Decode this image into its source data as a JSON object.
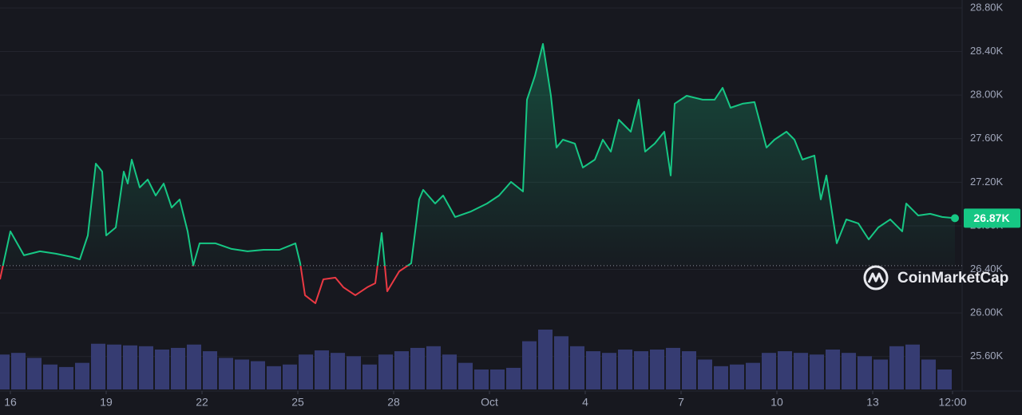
{
  "chart_data": {
    "type": "line",
    "x": [
      15.675,
      16,
      16.425,
      16.925,
      17.425,
      17.925,
      18.175,
      18.425,
      18.675,
      18.875,
      19,
      19.3,
      19.55,
      19.675,
      19.8,
      20.05,
      20.3,
      20.55,
      20.8,
      21.05,
      21.3,
      21.55,
      21.725,
      21.925,
      22.425,
      22.925,
      23.425,
      23.925,
      24.425,
      24.925,
      25.075,
      25.225,
      25.55,
      25.8,
      26.175,
      26.425,
      26.8,
      27.175,
      27.425,
      27.625,
      27.8,
      28.175,
      28.55,
      28.8,
      28.925,
      29.3,
      29.55,
      29.925,
      30.425,
      30.925,
      31.3,
      31.675,
      32.05,
      32.175,
      32.425,
      32.675,
      32.925,
      33.1,
      33.3,
      33.675,
      33.925,
      34.3,
      34.55,
      34.8,
      35.05,
      35.425,
      35.675,
      35.875,
      36.175,
      36.475,
      36.675,
      36.8,
      37.175,
      37.675,
      38.05,
      38.3,
      38.55,
      38.925,
      39.3,
      39.675,
      39.925,
      40.3,
      40.55,
      40.8,
      41.175,
      41.375,
      41.55,
      41.875,
      42.175,
      42.55,
      42.875,
      43.175,
      43.55,
      43.925,
      44.05,
      44.425,
      44.8,
      45.175,
      45.575
    ],
    "values": [
      26309,
      26749,
      26529,
      26566,
      26544,
      26514,
      26492,
      26712,
      27371,
      27298,
      26712,
      26785,
      27298,
      27188,
      27408,
      27152,
      27225,
      27078,
      27188,
      26968,
      27042,
      26749,
      26434,
      26639,
      26639,
      26588,
      26566,
      26580,
      26580,
      26639,
      26456,
      26163,
      26089,
      26309,
      26324,
      26236,
      26163,
      26236,
      26273,
      26734,
      26199,
      26382,
      26456,
      27042,
      27130,
      27005,
      27078,
      26881,
      26932,
      27005,
      27078,
      27203,
      27115,
      27958,
      28177,
      28470,
      27994,
      27518,
      27591,
      27555,
      27335,
      27408,
      27591,
      27481,
      27774,
      27664,
      27958,
      27481,
      27555,
      27664,
      27262,
      27921,
      27994,
      27958,
      27958,
      28067,
      27884,
      27921,
      27936,
      27518,
      27591,
      27664,
      27591,
      27408,
      27445,
      27042,
      27262,
      26639,
      26859,
      26822,
      26675,
      26785,
      26859,
      26749,
      27005,
      26895,
      26910,
      26881,
      26870
    ],
    "baseline": 26434,
    "up_color": "#16c784",
    "down_color": "#ea3943",
    "xlim": [
      15.675,
      45.8
    ],
    "ylim": [
      25283,
      28873
    ],
    "xticks": [
      16,
      19,
      22,
      25,
      28,
      {
        "value": 31,
        "label": "Oct"
      },
      {
        "value": 34,
        "label": "4"
      },
      {
        "value": 37,
        "label": "7"
      },
      {
        "value": 40,
        "label": "10"
      },
      {
        "value": 43,
        "label": "13"
      },
      {
        "value": 45.5,
        "label": "12:00"
      }
    ],
    "yticks": [
      {
        "value": 25600,
        "label": "25.60K"
      },
      {
        "value": 26000,
        "label": "26.00K"
      },
      {
        "value": 26400,
        "label": "26.40K"
      },
      {
        "value": 26800,
        "label": "26.80K"
      },
      {
        "value": 27200,
        "label": "27.20K"
      },
      {
        "value": 27600,
        "label": "27.60K"
      },
      {
        "value": 28000,
        "label": "28.00K"
      },
      {
        "value": 28400,
        "label": "28.40K"
      },
      {
        "value": 28800,
        "label": "28.80K"
      }
    ],
    "grid": true,
    "current_price": 26870,
    "current_price_label": "26.87K",
    "watermark": "CoinMarketCap",
    "volume": {
      "color": "#363c72",
      "x": [
        15.75,
        16.25,
        16.75,
        17.25,
        17.75,
        18.25,
        18.75,
        19.25,
        19.75,
        20.25,
        20.75,
        21.25,
        21.75,
        22.25,
        22.75,
        23.25,
        23.75,
        24.25,
        24.75,
        25.25,
        25.75,
        26.25,
        26.75,
        27.25,
        27.75,
        28.25,
        28.75,
        29.25,
        29.75,
        30.25,
        30.75,
        31.25,
        31.75,
        32.25,
        32.75,
        33.25,
        33.75,
        34.25,
        34.75,
        35.25,
        35.75,
        36.25,
        36.75,
        37.25,
        37.75,
        38.25,
        38.75,
        39.25,
        39.75,
        40.25,
        40.75,
        41.25,
        41.75,
        42.25,
        42.75,
        43.25,
        43.75,
        44.25,
        44.75,
        45.25
      ],
      "values": [
        42,
        44,
        38,
        30,
        27,
        32,
        55,
        54,
        53,
        52,
        48,
        50,
        54,
        46,
        38,
        36,
        34,
        28,
        30,
        42,
        47,
        44,
        40,
        30,
        42,
        46,
        50,
        52,
        42,
        32,
        24,
        24,
        26,
        58,
        72,
        64,
        52,
        46,
        44,
        48,
        46,
        48,
        50,
        46,
        36,
        28,
        30,
        32,
        44,
        46,
        44,
        42,
        48,
        44,
        40,
        36,
        52,
        54,
        36,
        24
      ]
    }
  }
}
